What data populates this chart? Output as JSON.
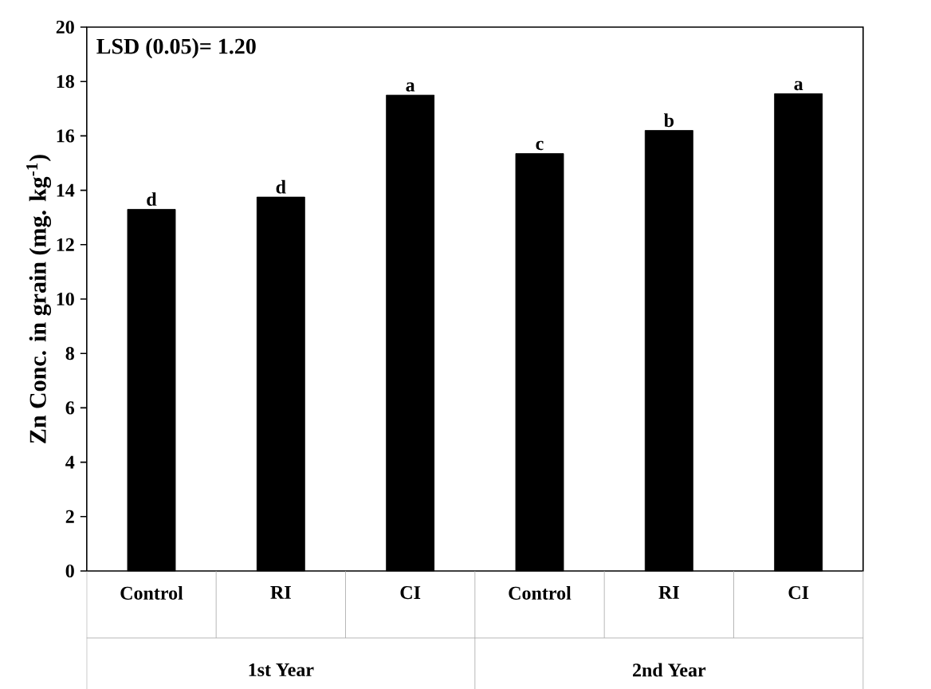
{
  "chart_data": {
    "type": "bar",
    "ylabel": "Zn Conc. in grain (mg. kg$^{-1}$)",
    "categories": [
      "Control",
      "RI",
      "CI",
      "Control",
      "RI",
      "CI"
    ],
    "values": [
      13.3,
      13.75,
      17.5,
      15.35,
      16.2,
      17.55
    ],
    "value_labels": [
      "d",
      "d",
      "a",
      "c",
      "b",
      "a"
    ],
    "color": "#000000",
    "ylim": [
      0,
      20
    ],
    "yticks": [
      0,
      2,
      4,
      6,
      8,
      10,
      12,
      14,
      16,
      18,
      20
    ],
    "annotations": [
      "LSD (0.05)= 1.20",
      "1st Year",
      "2nd Year"
    ]
  }
}
